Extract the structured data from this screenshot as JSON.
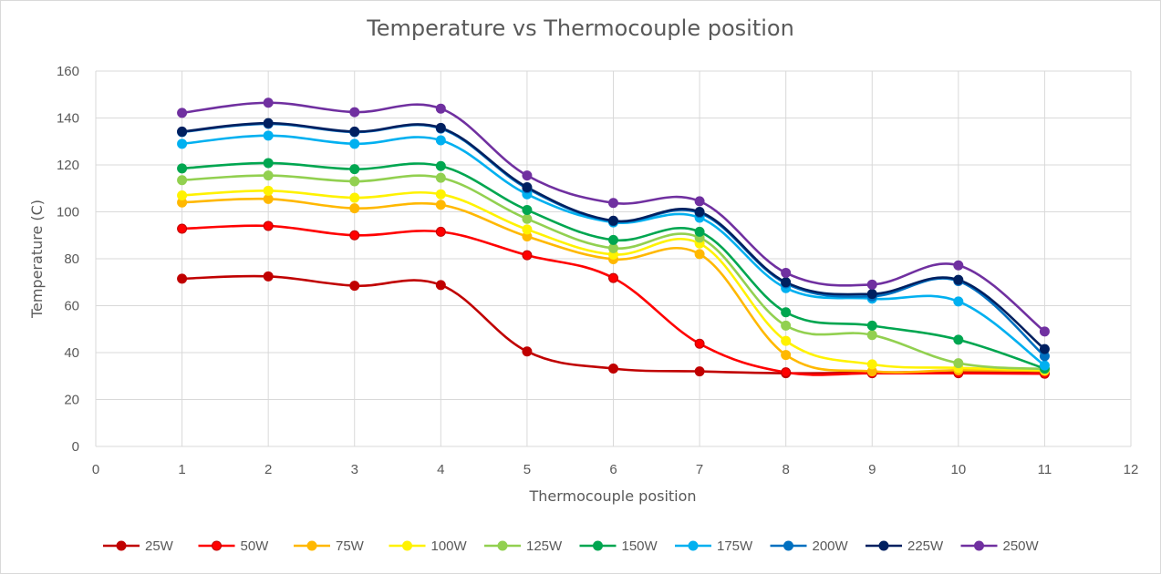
{
  "chart_data": {
    "type": "line",
    "title": "Temperature vs Thermocouple position",
    "xlabel": "Thermocouple position",
    "ylabel": "Temperature (C)",
    "xlim": [
      0,
      12
    ],
    "ylim": [
      0,
      160
    ],
    "xticks": [
      0,
      1,
      2,
      3,
      4,
      5,
      6,
      7,
      8,
      9,
      10,
      11,
      12
    ],
    "yticks": [
      0,
      20,
      40,
      60,
      80,
      100,
      120,
      140,
      160
    ],
    "grid": true,
    "smooth": true,
    "legend_position": "bottom",
    "x": [
      1,
      2,
      3,
      4,
      5,
      6,
      7,
      8,
      9,
      10,
      11
    ],
    "series": [
      {
        "name": "25W",
        "color": "#C00000",
        "values": [
          71.5,
          72.5,
          68.5,
          68.8,
          40.5,
          33.2,
          32.0,
          31.2,
          31.5,
          31.8,
          31.5
        ]
      },
      {
        "name": "50W",
        "color": "#FF0000",
        "values": [
          92.8,
          94.0,
          90.0,
          91.5,
          81.5,
          71.8,
          43.8,
          31.6,
          31.2,
          31.2,
          31.0
        ]
      },
      {
        "name": "75W",
        "color": "#FFB800",
        "values": [
          104.0,
          105.5,
          101.5,
          103.0,
          89.5,
          79.8,
          82.0,
          39.0,
          32.0,
          32.5,
          32.2
        ]
      },
      {
        "name": "100W",
        "color": "#FFF200",
        "values": [
          107.0,
          109.0,
          106.0,
          107.5,
          92.5,
          81.8,
          86.5,
          45.0,
          35.0,
          33.5,
          32.5
        ]
      },
      {
        "name": "125W",
        "color": "#92D050",
        "values": [
          113.5,
          115.5,
          113.0,
          114.5,
          97.0,
          84.5,
          89.0,
          51.5,
          47.5,
          35.5,
          33.0
        ]
      },
      {
        "name": "150W",
        "color": "#00A650",
        "values": [
          118.5,
          120.8,
          118.2,
          119.5,
          100.8,
          88.0,
          91.5,
          57.2,
          51.5,
          45.5,
          33.2
        ]
      },
      {
        "name": "175W",
        "color": "#00B0F0",
        "values": [
          129.0,
          132.5,
          129.0,
          130.5,
          107.5,
          95.5,
          97.5,
          67.5,
          63.0,
          61.8,
          34.5
        ]
      },
      {
        "name": "200W",
        "color": "#0070C0",
        "values": [
          134.0,
          137.5,
          134.0,
          135.5,
          110.0,
          96.0,
          99.5,
          69.5,
          64.0,
          70.5,
          38.5
        ]
      },
      {
        "name": "225W",
        "color": "#002060",
        "values": [
          134.2,
          137.8,
          134.2,
          135.8,
          110.5,
          96.2,
          100.0,
          70.0,
          65.0,
          71.0,
          41.5
        ]
      },
      {
        "name": "250W",
        "color": "#7030A0",
        "values": [
          142.2,
          146.5,
          142.5,
          144.0,
          115.5,
          103.8,
          104.5,
          74.0,
          69.0,
          77.2,
          49.0
        ]
      }
    ]
  }
}
